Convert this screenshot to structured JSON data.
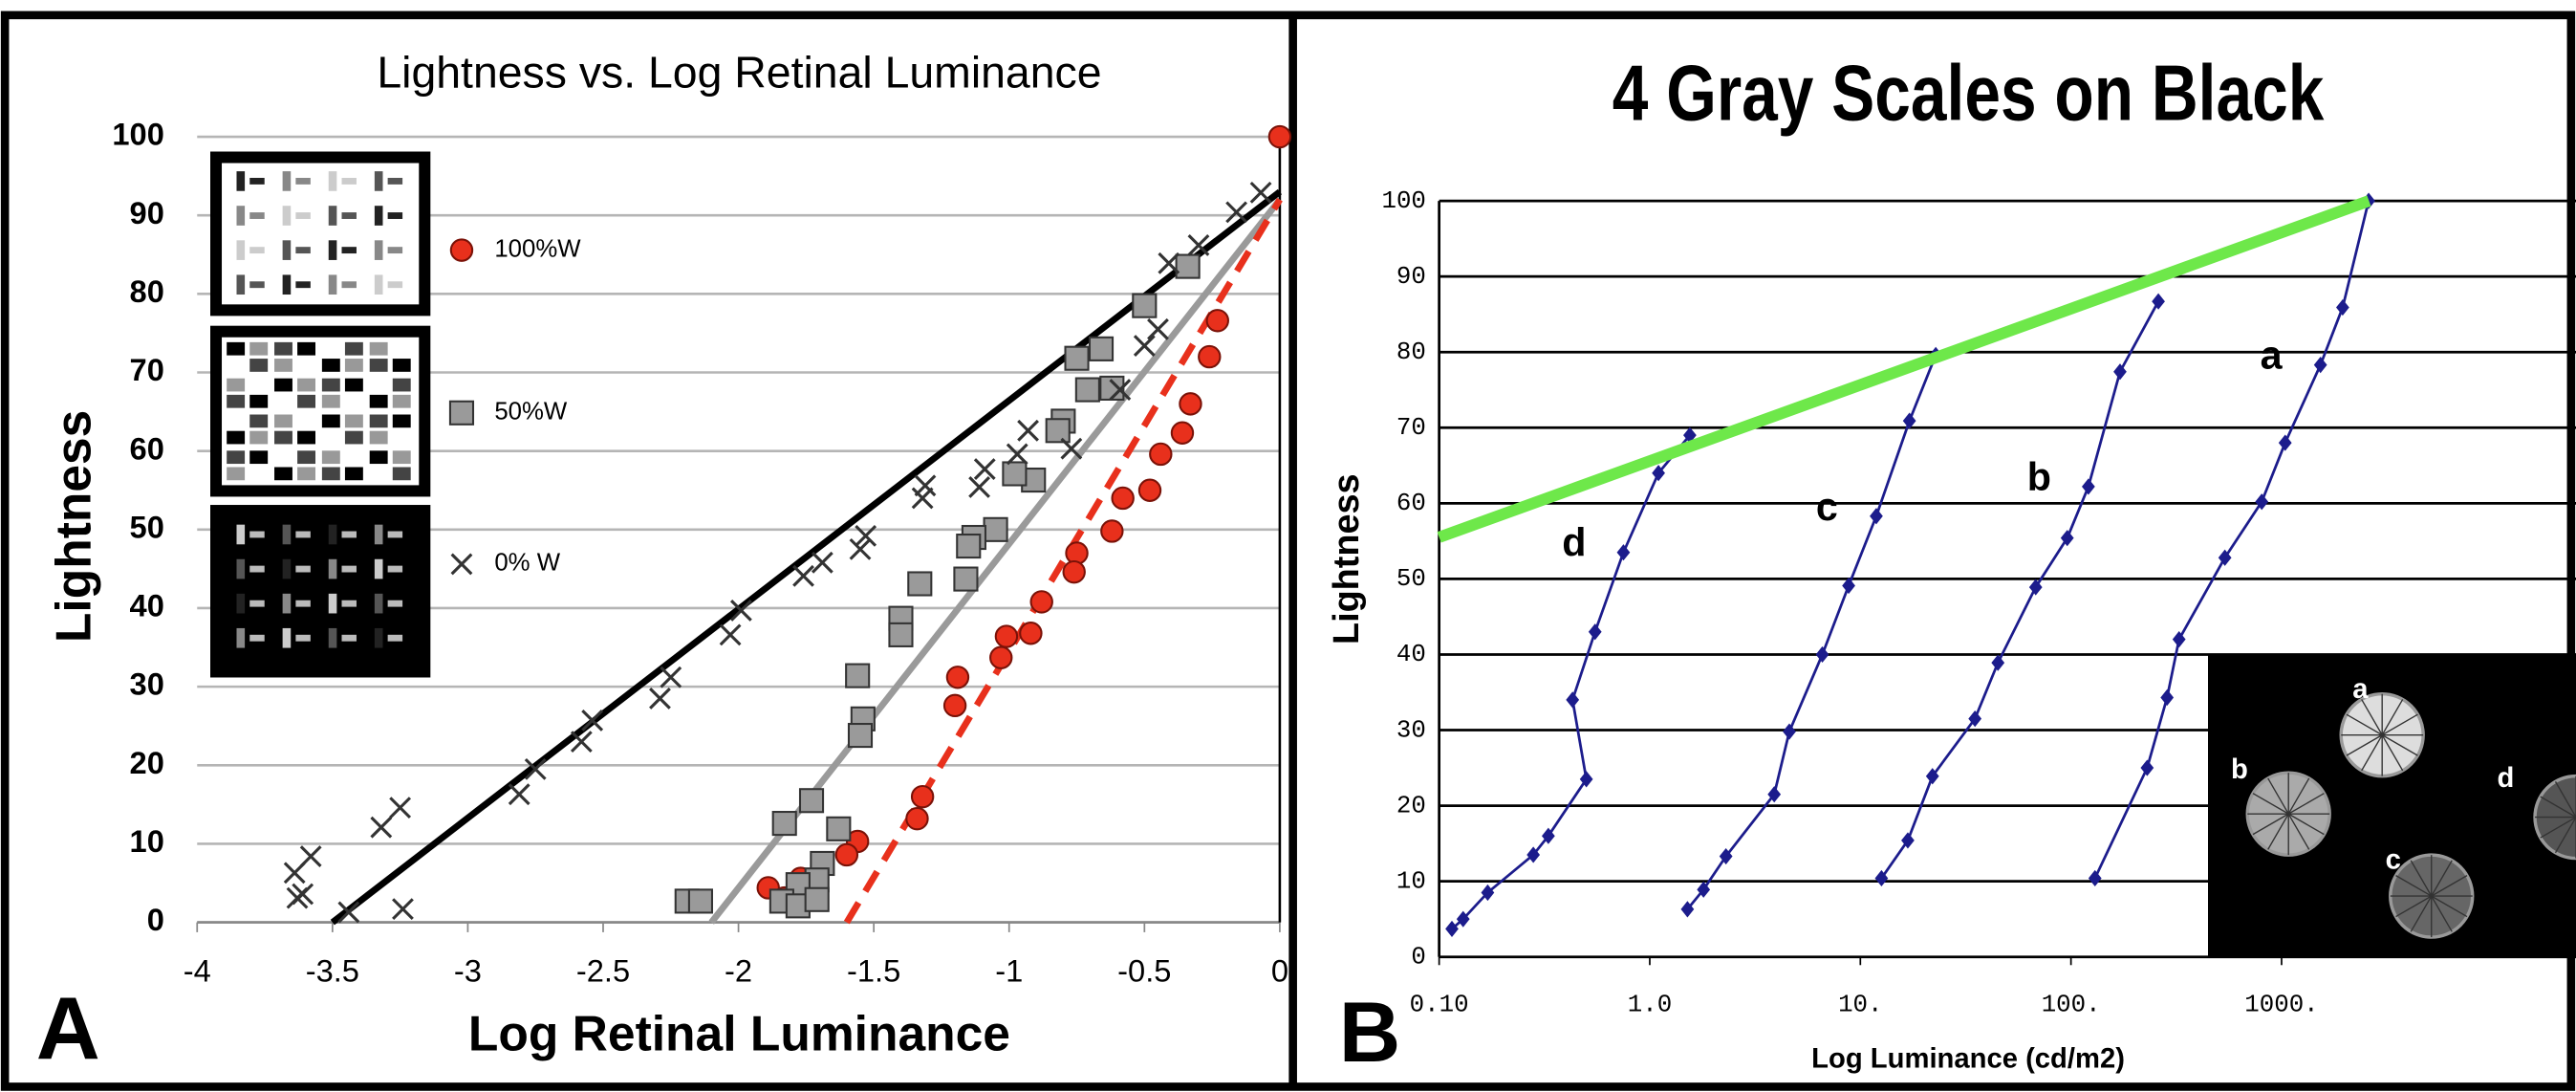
{
  "chart_data": [
    {
      "type": "scatter",
      "title": "Lightness vs. Log Retinal Luminance",
      "panel": "A",
      "x_label": "Log Retinal Luminance",
      "y_label": "Lightness",
      "xlim": [
        -4,
        0
      ],
      "ylim": [
        0,
        100
      ],
      "xticks": [
        -4,
        -3.5,
        -3,
        -2.5,
        -2,
        -1.5,
        -1,
        -0.5,
        0
      ],
      "yticks": [
        0,
        10,
        20,
        30,
        40,
        50,
        60,
        70,
        80,
        90,
        100
      ],
      "grid": true,
      "series": [
        {
          "name": "100%W",
          "marker": "circle",
          "color": "#e8301c",
          "x": [
            0,
            -0.23,
            -0.26,
            -0.33,
            -0.36,
            -0.44,
            -0.48,
            -0.58,
            -0.62,
            -0.75,
            -0.76,
            -0.88,
            -0.92,
            -1.01,
            -1.03,
            -1.19,
            -1.2,
            -1.32,
            -1.34,
            -1.56,
            -1.6,
            -1.89,
            -1.77,
            -1.83
          ],
          "values": [
            100,
            76.6,
            72,
            66,
            62.3,
            59.6,
            55,
            54,
            49.8,
            47,
            44.6,
            40.8,
            36.8,
            36.4,
            33.7,
            31.2,
            27.6,
            16,
            13.2,
            10.3,
            8.6,
            4.4,
            5.6,
            3.1
          ]
        },
        {
          "name": "50%W",
          "marker": "square",
          "color": "#9a9a9a",
          "x": [
            -0.34,
            -0.5,
            -0.66,
            -0.75,
            -0.62,
            -0.71,
            -0.8,
            -0.82,
            -0.91,
            -0.98,
            -1.05,
            -1.13,
            -1.15,
            -1.16,
            -1.33,
            -1.4,
            -1.4,
            -1.56,
            -1.54,
            -1.55,
            -1.73,
            -1.83,
            -1.63,
            -1.69,
            -1.71,
            -1.78,
            -1.84,
            -1.78,
            -1.71,
            -2.19,
            -2.14
          ],
          "values": [
            83.5,
            78.5,
            73,
            71.8,
            68,
            67.8,
            63.8,
            62.6,
            56.3,
            57.1,
            50,
            49,
            47.9,
            43.7,
            43.1,
            38.7,
            36.6,
            31.4,
            25.9,
            23.8,
            15.5,
            12.6,
            11.9,
            7.5,
            5.4,
            4.8,
            2.7,
            2.1,
            2.9,
            2.7,
            2.7
          ]
        },
        {
          "name": "0% W",
          "marker": "cross",
          "color": "#333333",
          "x": [
            -0.07,
            -0.16,
            -0.3,
            -0.41,
            -0.45,
            -0.5,
            -0.59,
            -0.77,
            -0.93,
            -0.97,
            -1.09,
            -1.11,
            -1.31,
            -1.32,
            -1.53,
            -1.55,
            -1.69,
            -1.76,
            -1.99,
            -2.03,
            -2.25,
            -2.29,
            -2.54,
            -2.58,
            -2.75,
            -2.81,
            -3.25,
            -3.32,
            -3.58,
            -3.64,
            -3.61,
            -3.63,
            -3.44,
            -3.24
          ],
          "values": [
            92.9,
            90.4,
            86.2,
            83.9,
            75.5,
            73.4,
            67.8,
            60.3,
            62.6,
            59.6,
            57.7,
            55.4,
            55.6,
            54,
            49.2,
            47.5,
            45.8,
            44.1,
            39.7,
            36.6,
            31.2,
            28.5,
            25.7,
            23,
            19.5,
            16.3,
            14.6,
            12.1,
            8.4,
            6.3,
            3.6,
            3.1,
            1.3,
            1.7
          ]
        }
      ],
      "lines": [
        {
          "x": [
            -3.5,
            0
          ],
          "values": [
            0,
            93
          ],
          "color": "#000000",
          "dashed": false
        },
        {
          "x": [
            -2.1,
            0
          ],
          "values": [
            0,
            92
          ],
          "color": "#9a9a9a",
          "dashed": false
        },
        {
          "x": [
            -1.6,
            0
          ],
          "values": [
            0,
            92
          ],
          "color": "#e8301c",
          "dashed": true
        }
      ]
    },
    {
      "type": "line",
      "title": "4 Gray Scales on Black",
      "panel": "B",
      "x_label": "Log Luminance (cd/m2)",
      "y_label": "Lightness",
      "log_x": true,
      "xlim": [
        0.1,
        25000
      ],
      "ylim": [
        0,
        100
      ],
      "xticks": [
        {
          "value": 0.1,
          "label": "0.10"
        },
        {
          "value": 1,
          "label": "1.0"
        },
        {
          "value": 10,
          "label": "10."
        },
        {
          "value": 100,
          "label": "100."
        },
        {
          "value": 1000,
          "label": "1000."
        }
      ],
      "yticks": [
        0,
        10,
        20,
        30,
        40,
        50,
        60,
        70,
        80,
        90,
        100
      ],
      "grid": true,
      "series": [
        {
          "name": "d",
          "color": "#1c1c8c",
          "x": [
            0.115,
            0.13,
            0.17,
            0.28,
            0.33,
            0.5,
            0.43,
            0.55,
            0.75,
            1.1,
            1.55
          ],
          "values": [
            3.7,
            5,
            8.5,
            13.5,
            16,
            23.5,
            34,
            43,
            53.5,
            64,
            69
          ]
        },
        {
          "name": "c",
          "color": "#1c1c8c",
          "x": [
            1.51,
            1.8,
            2.3,
            3.9,
            4.6,
            6.6,
            8.8,
            11.9,
            17.1,
            22.8
          ],
          "values": [
            6.3,
            8.9,
            13.3,
            21.5,
            29.8,
            40,
            49.1,
            58.3,
            70.9,
            79.6
          ]
        },
        {
          "name": "b",
          "color": "#1c1c8c",
          "x": [
            12.6,
            16.8,
            22,
            35,
            45,
            68,
            96,
            121,
            171,
            260
          ],
          "values": [
            10.4,
            15.4,
            23.9,
            31.5,
            38.9,
            48.9,
            55.4,
            62.2,
            77.4,
            86.7
          ]
        },
        {
          "name": "a",
          "color": "#1c1c8c",
          "x": [
            130,
            230,
            286,
            326,
            538,
            805,
            1040,
            1530,
            1950,
            2590
          ],
          "values": [
            10.4,
            25,
            34.3,
            42,
            52.8,
            60.2,
            68,
            78.3,
            85.9,
            100
          ]
        }
      ],
      "reference_line": {
        "x": [
          0.1,
          2600
        ],
        "values": [
          55.5,
          100
        ],
        "color": "#6ee84a"
      }
    }
  ]
}
